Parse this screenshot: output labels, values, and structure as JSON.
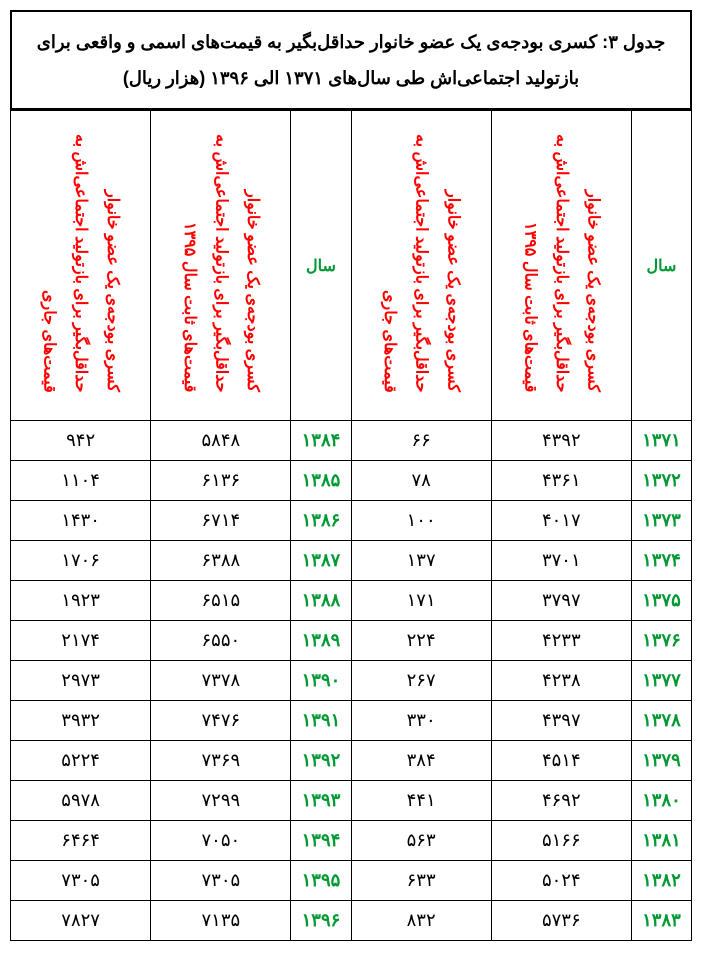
{
  "title": "جدول ۳: کسری بودجه‌ی یک عضو خانوار حداقل‌بگیر به قیمت‌های اسمی و واقعی برای بازتولید اجتماعی‌اش طی سال‌های ۱۳۷۱ الی ۱۳۹۶ (هزار ریال)",
  "headers": {
    "year": "سال",
    "real_line1": "کسری بودجه‌ی یک عضو خانوار",
    "real_line2": "حداقل‌بگیر برای بازتولید اجتماعی‌اش به",
    "real_line3": "قیمت‌های ثابت سال ۱۳۹۵",
    "nom_line1": "کسری بودجه‌ی یک عضو خانوار",
    "nom_line2": "حداقل‌بگیر برای بازتولید اجتماعی‌اش به",
    "nom_line3": "قیمت‌های جاری"
  },
  "rows": [
    {
      "y1": "۱۳۷۱",
      "r1": "۴۳۹۲",
      "n1": "۶۶",
      "y2": "۱۳۸۴",
      "r2": "۵۸۴۸",
      "n2": "۹۴۲"
    },
    {
      "y1": "۱۳۷۲",
      "r1": "۴۳۶۱",
      "n1": "۷۸",
      "y2": "۱۳۸۵",
      "r2": "۶۱۳۶",
      "n2": "۱۱۰۴"
    },
    {
      "y1": "۱۳۷۳",
      "r1": "۴۰۱۷",
      "n1": "۱۰۰",
      "y2": "۱۳۸۶",
      "r2": "۶۷۱۴",
      "n2": "۱۴۳۰"
    },
    {
      "y1": "۱۳۷۴",
      "r1": "۳۷۰۱",
      "n1": "۱۳۷",
      "y2": "۱۳۸۷",
      "r2": "۶۳۸۸",
      "n2": "۱۷۰۶"
    },
    {
      "y1": "۱۳۷۵",
      "r1": "۳۷۹۷",
      "n1": "۱۷۱",
      "y2": "۱۳۸۸",
      "r2": "۶۵۱۵",
      "n2": "۱۹۲۳"
    },
    {
      "y1": "۱۳۷۶",
      "r1": "۴۲۳۳",
      "n1": "۲۲۴",
      "y2": "۱۳۸۹",
      "r2": "۶۵۵۰",
      "n2": "۲۱۷۴"
    },
    {
      "y1": "۱۳۷۷",
      "r1": "۴۲۳۸",
      "n1": "۲۶۷",
      "y2": "۱۳۹۰",
      "r2": "۷۳۷۸",
      "n2": "۲۹۷۳"
    },
    {
      "y1": "۱۳۷۸",
      "r1": "۴۳۹۷",
      "n1": "۳۳۰",
      "y2": "۱۳۹۱",
      "r2": "۷۴۷۶",
      "n2": "۳۹۳۲"
    },
    {
      "y1": "۱۳۷۹",
      "r1": "۴۵۱۴",
      "n1": "۳۸۴",
      "y2": "۱۳۹۲",
      "r2": "۷۳۶۹",
      "n2": "۵۲۲۴"
    },
    {
      "y1": "۱۳۸۰",
      "r1": "۴۶۹۲",
      "n1": "۴۴۱",
      "y2": "۱۳۹۳",
      "r2": "۷۲۹۹",
      "n2": "۵۹۷۸"
    },
    {
      "y1": "۱۳۸۱",
      "r1": "۵۱۶۶",
      "n1": "۵۶۳",
      "y2": "۱۳۹۴",
      "r2": "۷۰۵۰",
      "n2": "۶۴۶۴"
    },
    {
      "y1": "۱۳۸۲",
      "r1": "۵۰۲۴",
      "n1": "۶۳۳",
      "y2": "۱۳۹۵",
      "r2": "۷۳۰۵",
      "n2": "۷۳۰۵"
    },
    {
      "y1": "۱۳۸۳",
      "r1": "۵۷۳۶",
      "n1": "۸۳۲",
      "y2": "۱۳۹۶",
      "r2": "۷۱۳۵",
      "n2": "۷۸۲۷"
    }
  ],
  "style": {
    "title_border_color": "#000000",
    "cell_border_color": "#000000",
    "header_red": "#ff0000",
    "green": "#009933",
    "black": "#000000",
    "background": "#ffffff",
    "title_fontsize": 18,
    "header_fontsize": 16,
    "cell_fontsize": 18
  }
}
